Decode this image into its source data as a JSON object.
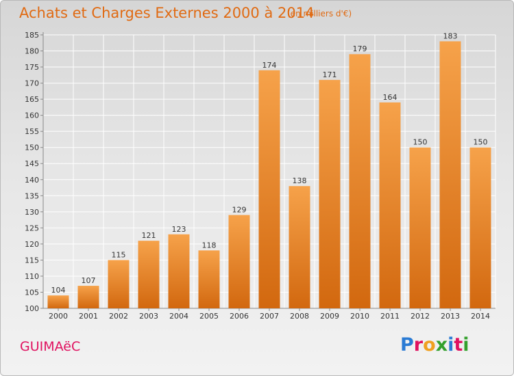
{
  "header": {
    "title": "Achats et Charges Externes 2000 à 2014",
    "unit": "(en milliers d'€)"
  },
  "footer": {
    "town": "GUIMAëC",
    "logo_letters": [
      "P",
      "r",
      "o",
      "x",
      "i",
      "t",
      "i"
    ],
    "logo_colors": [
      "#2a7bd4",
      "#e0115f",
      "#f0a020",
      "#33a02c",
      "#2a7bd4",
      "#e0115f",
      "#33a02c"
    ]
  },
  "colors": {
    "bar_top": "#f6a24a",
    "bar_bottom": "#d2680f",
    "grid": "#ffffff",
    "axis": "#888888"
  },
  "chart_data": {
    "type": "bar",
    "title": "Achats et Charges Externes 2000 à 2014",
    "xlabel": "",
    "ylabel": "",
    "categories": [
      "2000",
      "2001",
      "2002",
      "2003",
      "2004",
      "2005",
      "2006",
      "2007",
      "2008",
      "2009",
      "2010",
      "2011",
      "2012",
      "2013",
      "2014"
    ],
    "values": [
      104,
      107,
      115,
      121,
      123,
      118,
      129,
      174,
      138,
      171,
      179,
      164,
      150,
      183,
      150
    ],
    "ylim": [
      100,
      185
    ],
    "yticks": [
      100,
      105,
      110,
      115,
      120,
      125,
      130,
      135,
      140,
      145,
      150,
      155,
      160,
      165,
      170,
      175,
      180,
      185
    ],
    "grid": true
  }
}
